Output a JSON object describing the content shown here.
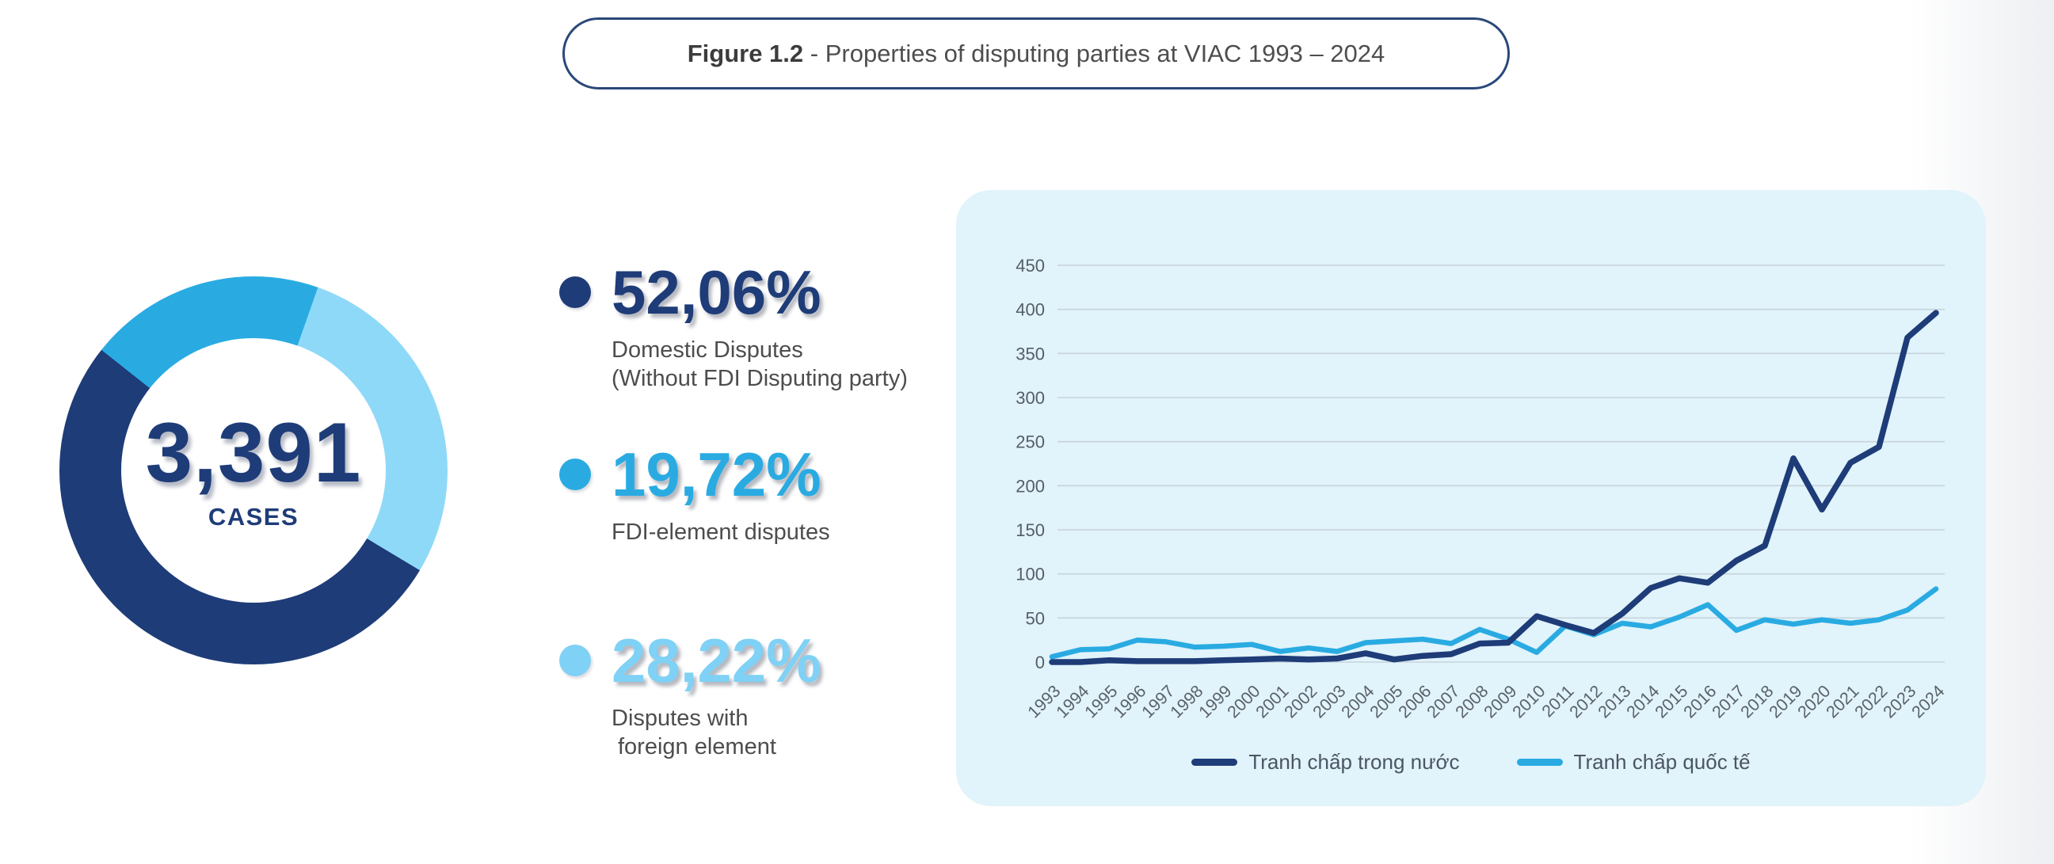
{
  "header": {
    "figure_label": "Figure 1.2",
    "figure_caption": " - Properties of disputing parties at VIAC 1993 – 2024"
  },
  "donut": {
    "total": "3,391",
    "unit": "CASES",
    "start_angle_deg": 19.4,
    "segments": [
      {
        "name": "disputes-with-foreign-element",
        "percent": 28.22,
        "color": "#8FD9F8"
      },
      {
        "name": "domestic-disputes",
        "percent": 52.06,
        "color": "#1E3C78"
      },
      {
        "name": "fdi-element-disputes",
        "percent": 19.72,
        "color": "#29ABE2"
      }
    ]
  },
  "stats": [
    {
      "value": "52,06%",
      "color": "#1E3C78",
      "caption1": "Domestic Disputes",
      "caption2": "(Without FDI Disputing party)"
    },
    {
      "value": "19,72%",
      "color": "#29ABE2",
      "caption1": "FDI-element disputes",
      "caption2": ""
    },
    {
      "value": "28,22%",
      "color": "#7FD1F5",
      "caption1": "Disputes with",
      "caption2": "foreign element"
    }
  ],
  "chart_data": {
    "type": "line",
    "x": [
      "1993",
      "1994",
      "1995",
      "1996",
      "1997",
      "1998",
      "1999",
      "2000",
      "2001",
      "2002",
      "2003",
      "2004",
      "2005",
      "2006",
      "2007",
      "2008",
      "2009",
      "2010",
      "2011",
      "2012",
      "2013",
      "2014",
      "2015",
      "2016",
      "2017",
      "2018",
      "2019",
      "2020",
      "2021",
      "2022",
      "2023",
      "2024"
    ],
    "series": [
      {
        "name": "Tranh chấp trong nước",
        "color": "#1E3C78",
        "values": [
          0,
          0,
          2,
          1,
          1,
          1,
          2,
          3,
          4,
          3,
          4,
          10,
          3,
          7,
          9,
          21,
          22,
          52,
          42,
          33,
          55,
          84,
          95,
          90,
          115,
          132,
          231,
          173,
          226,
          244,
          368,
          396
        ]
      },
      {
        "name": "Tranh chấp quốc tế",
        "color": "#29ABE2",
        "values": [
          6,
          14,
          15,
          25,
          23,
          17,
          18,
          20,
          12,
          16,
          12,
          22,
          24,
          26,
          21,
          37,
          26,
          11,
          41,
          31,
          44,
          40,
          51,
          65,
          36,
          48,
          43,
          48,
          44,
          48,
          59,
          83
        ]
      }
    ],
    "ylim": [
      0,
      450
    ],
    "yticks": [
      0,
      50,
      100,
      150,
      200,
      250,
      300,
      350,
      400,
      450
    ],
    "grid": true,
    "legend_position": "bottom"
  }
}
